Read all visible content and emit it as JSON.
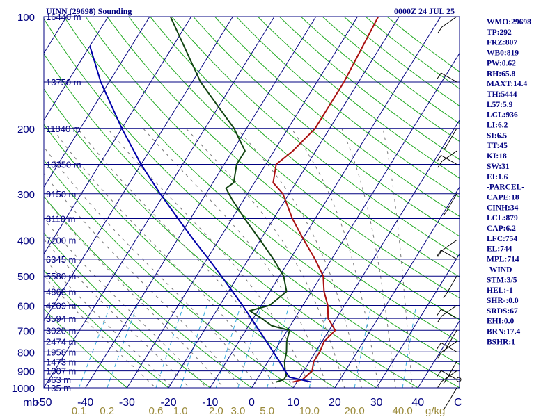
{
  "header": {
    "station": "UINN (29698) Sounding",
    "time": "0000Z 24 JUL 25"
  },
  "indices": [
    "WMO:29698",
    "TP:292",
    "FRZ:807",
    "WB0:819",
    "PW:0.62",
    "RH:65.8",
    "MAXT:14.4",
    "TH:5444",
    "L57:5.9",
    "LCL:936",
    "LI:6.2",
    "SI:6.5",
    "TT:45",
    "KI:18",
    "SW:31",
    "EI:1.6",
    "-PARCEL-",
    "CAPE:18",
    "CINH:34",
    "LCL:879",
    "CAP:6.2",
    "LFC:754",
    "EL:744",
    "MPL:714",
    "-WIND-",
    "STM:3/5",
    "HEL:-1",
    "SHR-:0.0",
    "SRDS:67",
    "EHI:0.0",
    "BRN:17.4",
    "BSHR:1"
  ],
  "colors": {
    "axis": "#000080",
    "isotherm": "#000080",
    "dry_adiabat": "#22aa22",
    "moist_adiabat": "#777777",
    "mixing_ratio": "#33aadd",
    "temperature": "#aa1111",
    "dewpoint": "#114411",
    "parcel": "#0000aa",
    "mixing_label": "#9a8a3a"
  },
  "chart_data": {
    "type": "line",
    "title": "UINN (29698) Sounding",
    "y_axis": {
      "quantity": "pressure",
      "scale": "log",
      "range": [
        1000,
        100
      ],
      "tick_labels": [
        "100",
        "200",
        "300",
        "400",
        "500",
        "600",
        "700",
        "800",
        "900",
        "1000"
      ],
      "unit_label": "mb"
    },
    "x_axis": {
      "quantity": "temperature",
      "skewed": true,
      "range": [
        -50,
        50
      ],
      "tick_labels": [
        "-50",
        "-40",
        "-30",
        "-20",
        "-10",
        "0",
        "10",
        "20",
        "30",
        "40"
      ],
      "unit_label": "C"
    },
    "height_labels": [
      {
        "p": 100,
        "label": "16440 m"
      },
      {
        "p": 150,
        "label": "13750 m"
      },
      {
        "p": 200,
        "label": "11840 m"
      },
      {
        "p": 250,
        "label": "10350 m"
      },
      {
        "p": 300,
        "label": "9150 m"
      },
      {
        "p": 350,
        "label": "8110 m"
      },
      {
        "p": 400,
        "label": "7200 m"
      },
      {
        "p": 450,
        "label": "6345 m"
      },
      {
        "p": 500,
        "label": "5580 m"
      },
      {
        "p": 550,
        "label": "4868 m"
      },
      {
        "p": 600,
        "label": "4209 m"
      },
      {
        "p": 650,
        "label": "3594 m"
      },
      {
        "p": 700,
        "label": "3020 m"
      },
      {
        "p": 750,
        "label": "2474 m"
      },
      {
        "p": 800,
        "label": "1958 m"
      },
      {
        "p": 850,
        "label": "1473 m"
      },
      {
        "p": 900,
        "label": "1007 m"
      },
      {
        "p": 950,
        "label": "563 m"
      },
      {
        "p": 1000,
        "label": "135 m"
      }
    ],
    "mixing_ratio_labels": [
      {
        "w": 0.1,
        "label": "0.1"
      },
      {
        "w": 0.2,
        "label": "0.2"
      },
      {
        "w": 0.6,
        "label": "0.6"
      },
      {
        "w": 1.0,
        "label": "1.0"
      },
      {
        "w": 2.0,
        "label": "2.0"
      },
      {
        "w": 3.0,
        "label": "3.0"
      },
      {
        "w": 5.0,
        "label": "5.0"
      },
      {
        "w": 10.0,
        "label": "10.0"
      },
      {
        "w": 20.0,
        "label": "20.0"
      },
      {
        "w": 40.0,
        "label": "40.0"
      }
    ],
    "mixing_ratio_unit": "g/kg",
    "series": [
      {
        "key": "temperature",
        "points": [
          [
            965,
            9.0
          ],
          [
            950,
            11.0
          ],
          [
            925,
            11.5
          ],
          [
            900,
            12.0
          ],
          [
            850,
            11.0
          ],
          [
            800,
            11.0
          ],
          [
            750,
            10.5
          ],
          [
            700,
            11.5
          ],
          [
            650,
            8.0
          ],
          [
            600,
            6.0
          ],
          [
            550,
            3.0
          ],
          [
            500,
            0.5
          ],
          [
            450,
            -4.0
          ],
          [
            400,
            -9.5
          ],
          [
            350,
            -15.5
          ],
          [
            300,
            -21.5
          ],
          [
            280,
            -25.5
          ],
          [
            250,
            -27.5
          ],
          [
            230,
            -25.5
          ],
          [
            200,
            -23.5
          ],
          [
            150,
            -23.5
          ],
          [
            100,
            -25.0
          ]
        ]
      },
      {
        "key": "dewpoint",
        "points": [
          [
            965,
            5.0
          ],
          [
            950,
            6.5
          ],
          [
            925,
            6.5
          ],
          [
            900,
            5.5
          ],
          [
            850,
            4.0
          ],
          [
            800,
            3.0
          ],
          [
            750,
            1.5
          ],
          [
            700,
            0.5
          ],
          [
            680,
            -4.5
          ],
          [
            650,
            -8.0
          ],
          [
            620,
            -12.0
          ],
          [
            600,
            -8.0
          ],
          [
            550,
            -6.0
          ],
          [
            500,
            -9.0
          ],
          [
            450,
            -14.0
          ],
          [
            400,
            -20.0
          ],
          [
            350,
            -27.0
          ],
          [
            310,
            -33.0
          ],
          [
            290,
            -36.0
          ],
          [
            280,
            -35.0
          ],
          [
            250,
            -37.0
          ],
          [
            230,
            -37.0
          ],
          [
            200,
            -43.0
          ],
          [
            150,
            -58.0
          ],
          [
            100,
            -75.0
          ]
        ]
      },
      {
        "key": "parcel",
        "points": [
          [
            965,
            13.5
          ],
          [
            936,
            7.5
          ],
          [
            900,
            5.5
          ],
          [
            850,
            2.8
          ],
          [
            800,
            -0.2
          ],
          [
            750,
            -3.4
          ],
          [
            700,
            -6.8
          ],
          [
            650,
            -10.5
          ],
          [
            600,
            -14.5
          ],
          [
            550,
            -19.0
          ],
          [
            500,
            -24.0
          ],
          [
            450,
            -29.6
          ],
          [
            400,
            -36.0
          ],
          [
            350,
            -43.0
          ],
          [
            300,
            -51.0
          ],
          [
            250,
            -60.0
          ],
          [
            200,
            -70.0
          ],
          [
            150,
            -82.0
          ],
          [
            120,
            -90.0
          ]
        ]
      }
    ],
    "wind_barbs_present": true
  }
}
